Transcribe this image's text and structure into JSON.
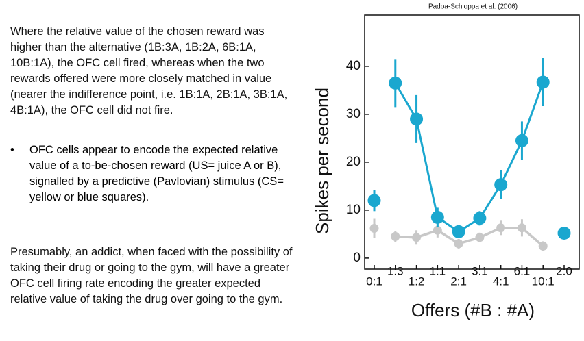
{
  "text": {
    "paragraph1": "Where the relative value of the chosen reward was higher than the alternative (1B:3A, 1B:2A, 6B:1A, 10B:1A), the OFC cell fired, whereas when the two rewards offered were more closely matched in value (nearer the indifference point, i.e. 1B:1A, 2B:1A, 3B:1A, 4B:1A), the OFC cell did not fire.",
    "bullet": "OFC cells appear to encode the expected relative value of a to-be-chosen reward (US= juice A or B), signalled by a predictive (Pavlovian) stimulus (CS= yellow or blue squares).",
    "paragraph2": "Presumably, an addict, when faced with the possibility of taking their drug or going to the gym, will have a greater OFC cell firing rate encoding the greater expected relative value of taking the drug over going to the gym."
  },
  "chart_data": {
    "type": "line",
    "title": "Padoa-Schioppa et al. (2006)",
    "x_label": "Offers (#B : #A)",
    "y_label": "Spikes per second",
    "categories": [
      "0:1",
      "1:3",
      "1:2",
      "1:1",
      "2:1",
      "3:1",
      "4:1",
      "6:1",
      "10:1",
      "2:0"
    ],
    "series": [
      {
        "color": "#c8c8c8",
        "values": [
          6.2,
          4.5,
          4.3,
          5.8,
          3,
          4.3,
          6.3,
          6.3,
          2.5,
          null
        ],
        "errors": [
          2,
          1.2,
          1.5,
          1.5,
          1,
          1,
          1.5,
          1.8,
          1,
          null
        ]
      },
      {
        "color": "#1aa7cf",
        "values": [
          12,
          36.5,
          29,
          8.5,
          5.5,
          8.3,
          15.3,
          24.5,
          36.7,
          5.2
        ],
        "errors": [
          2.2,
          5,
          5,
          2,
          1,
          1.5,
          3,
          4,
          5,
          0
        ]
      }
    ],
    "ylim": [
      -2.3,
      50.7
    ],
    "yticks": [
      0,
      10,
      20,
      30,
      40
    ]
  }
}
